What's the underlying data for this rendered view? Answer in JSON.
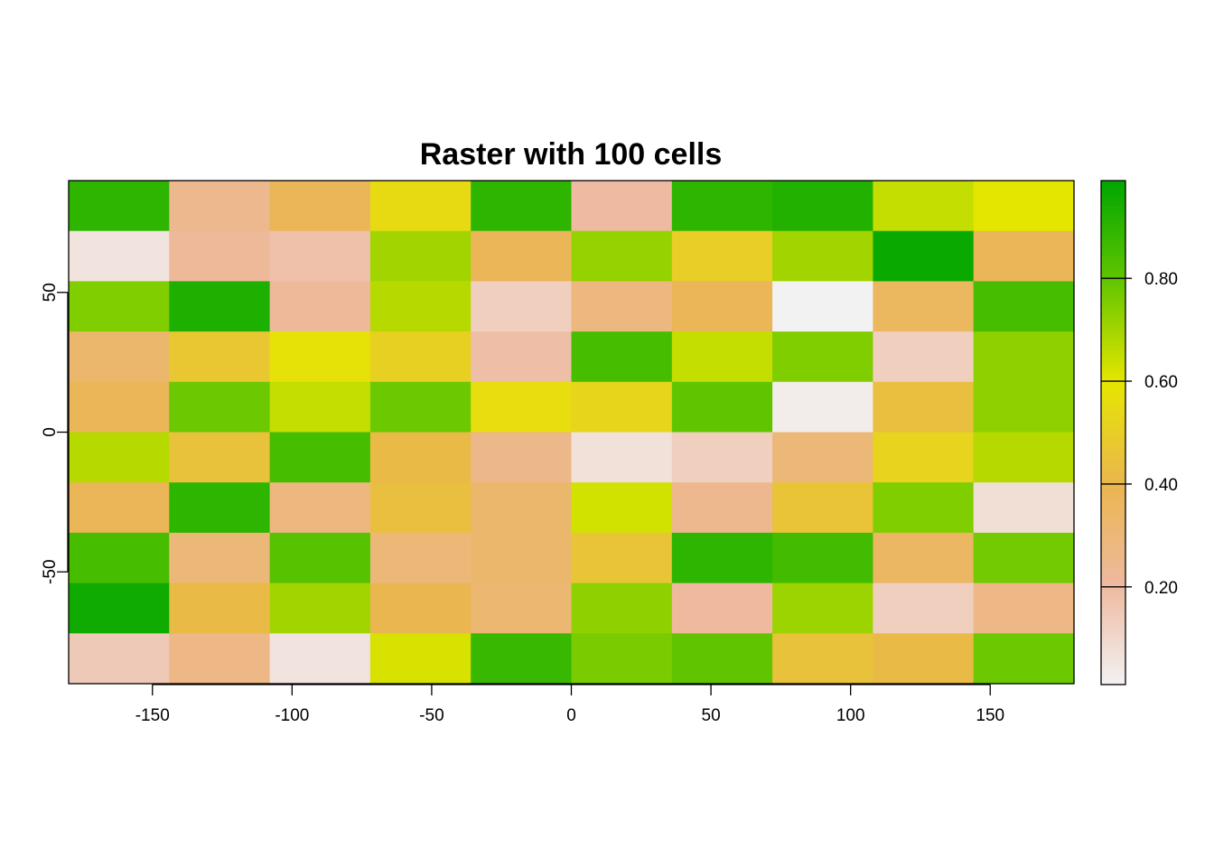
{
  "chart_data": {
    "type": "heatmap",
    "title": "Raster with 100 cells",
    "xlabel": "",
    "ylabel": "",
    "xlim": [
      -180,
      180
    ],
    "ylim": [
      -90,
      90
    ],
    "x_ticks": [
      -150,
      -100,
      -50,
      0,
      50,
      100,
      150
    ],
    "x_tick_labels": [
      "-150",
      "-100",
      "-50",
      "0",
      "50",
      "100",
      "150"
    ],
    "y_ticks": [
      -50,
      0,
      50
    ],
    "y_tick_labels": [
      "-50",
      "0",
      "50"
    ],
    "ncols": 10,
    "nrows": 10,
    "cell_values_row_major_top_to_bottom": [
      [
        0.9,
        0.25,
        0.38,
        0.55,
        0.9,
        0.2,
        0.9,
        0.92,
        0.65,
        0.6
      ],
      [
        0.06,
        0.22,
        0.18,
        0.7,
        0.38,
        0.72,
        0.5,
        0.7,
        0.97,
        0.38
      ],
      [
        0.75,
        0.93,
        0.22,
        0.67,
        0.13,
        0.28,
        0.38,
        0.01,
        0.36,
        0.85
      ],
      [
        0.33,
        0.47,
        0.58,
        0.51,
        0.19,
        0.85,
        0.65,
        0.75,
        0.13,
        0.73
      ],
      [
        0.38,
        0.78,
        0.65,
        0.78,
        0.56,
        0.53,
        0.8,
        0.03,
        0.44,
        0.73
      ],
      [
        0.67,
        0.45,
        0.85,
        0.42,
        0.26,
        0.07,
        0.13,
        0.3,
        0.52,
        0.67
      ],
      [
        0.38,
        0.9,
        0.28,
        0.44,
        0.33,
        0.63,
        0.25,
        0.46,
        0.75,
        0.08
      ],
      [
        0.85,
        0.3,
        0.82,
        0.3,
        0.33,
        0.46,
        0.9,
        0.86,
        0.35,
        0.77
      ],
      [
        0.96,
        0.42,
        0.7,
        0.4,
        0.32,
        0.73,
        0.21,
        0.71,
        0.13,
        0.27
      ],
      [
        0.15,
        0.27,
        0.06,
        0.62,
        0.88,
        0.76,
        0.8,
        0.45,
        0.42,
        0.78
      ]
    ],
    "value_range": [
      0.01,
      0.99
    ],
    "legend": {
      "position": "right",
      "ticks": [
        0.2,
        0.4,
        0.6,
        0.8
      ],
      "tick_labels": [
        "0.20",
        "0.40",
        "0.60",
        "0.80"
      ]
    },
    "colormap": [
      "#F2F2F2",
      "#EEB99F",
      "#EAB64E",
      "#E6E600",
      "#63C600",
      "#00A600"
    ],
    "grid": false
  }
}
